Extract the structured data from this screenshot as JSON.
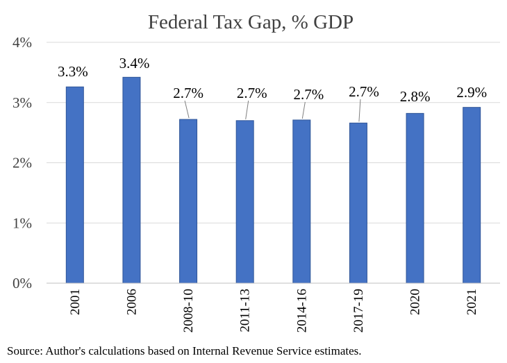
{
  "chart_data": {
    "type": "bar",
    "title": "Federal Tax Gap, % GDP",
    "categories": [
      "2001",
      "2006",
      "2008-10",
      "2011-13",
      "2014-16",
      "2017-19",
      "2020",
      "2021"
    ],
    "values": [
      3.26,
      3.42,
      2.72,
      2.7,
      2.71,
      2.66,
      2.82,
      2.92
    ],
    "data_labels": [
      "3.3%",
      "3.4%",
      "2.7%",
      "2.7%",
      "2.7%",
      "2.7%",
      "2.8%",
      "2.9%"
    ],
    "ylim": [
      0,
      4
    ],
    "yticks": [
      0,
      1,
      2,
      3,
      4
    ],
    "ytick_labels": [
      "0%",
      "1%",
      "2%",
      "3%",
      "4%"
    ],
    "xlabel": "",
    "ylabel": "",
    "grid": true,
    "bar_color": "#4472c4"
  },
  "source": "Source: Author's calculations based on Internal Revenue Service estimates."
}
